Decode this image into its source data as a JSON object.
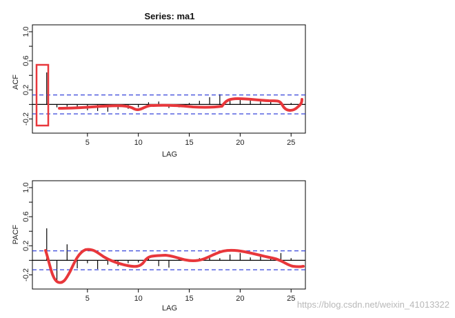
{
  "watermark": "https://blog.csdn.net/weixin_41013322",
  "chart_data": [
    {
      "type": "bar",
      "title": "Series:  ma1",
      "xlabel": "LAG",
      "ylabel": "ACF",
      "xlim": [
        0,
        26
      ],
      "ylim": [
        -0.3,
        1.0
      ],
      "xticks": [
        "5",
        "10",
        "15",
        "20",
        "25"
      ],
      "yticks": [
        "-0.2",
        "0.2",
        "0.6",
        "1.0"
      ],
      "conf_limit": 0.13,
      "lags": [
        1,
        2,
        3,
        4,
        5,
        6,
        7,
        8,
        9,
        10,
        11,
        12,
        13,
        14,
        15,
        16,
        17,
        18,
        19,
        20,
        21,
        22,
        23,
        24,
        25
      ],
      "values": [
        0.44,
        -0.04,
        -0.03,
        -0.04,
        -0.08,
        -0.09,
        -0.1,
        -0.07,
        -0.06,
        -0.04,
        0.03,
        0.04,
        -0.05,
        -0.04,
        0.02,
        0.05,
        0.1,
        0.14,
        0.07,
        0.06,
        0.06,
        0.05,
        0.04,
        0.03,
        0.02
      ],
      "annotations": {
        "highlight_box": "around lag 1",
        "drawn_curve_color": "#e8373b"
      }
    },
    {
      "type": "bar",
      "title": "",
      "xlabel": "LAG",
      "ylabel": "PACF",
      "xlim": [
        0,
        26
      ],
      "ylim": [
        -0.3,
        1.0
      ],
      "xticks": [
        "5",
        "10",
        "15",
        "20",
        "25"
      ],
      "yticks": [
        "-0.2",
        "0.2",
        "0.6",
        "1.0"
      ],
      "conf_limit": 0.13,
      "lags": [
        1,
        2,
        3,
        4,
        5,
        6,
        7,
        8,
        9,
        10,
        11,
        12,
        13,
        14,
        15,
        16,
        17,
        18,
        19,
        20,
        21,
        22,
        23,
        24,
        25
      ],
      "values": [
        0.44,
        -0.3,
        0.22,
        -0.11,
        -0.04,
        -0.12,
        -0.06,
        -0.08,
        -0.04,
        -0.03,
        0.05,
        -0.08,
        -0.1,
        0.02,
        -0.02,
        0.03,
        0.06,
        0.03,
        0.08,
        0.1,
        0.04,
        0.06,
        0.03,
        0.1,
        0.03
      ],
      "annotations": {
        "drawn_curve_color": "#e8373b"
      }
    }
  ]
}
